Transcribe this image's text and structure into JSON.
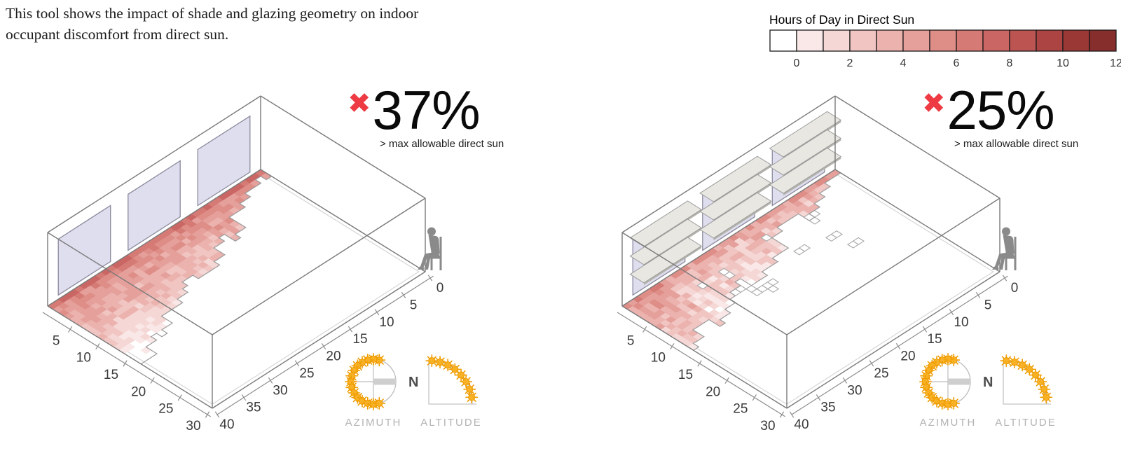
{
  "intro": {
    "line1": "This tool shows the impact of shade and glazing geometry on indoor",
    "line2": "occupant discomfort from direct sun."
  },
  "legend": {
    "title": "Hours of Day in Direct Sun",
    "min": 0,
    "max": 12,
    "tick_labels": [
      "0",
      "2",
      "4",
      "6",
      "8",
      "10",
      "12"
    ],
    "colors": [
      "#ffffff",
      "#f9e8e7",
      "#f5d7d5",
      "#f0c5c2",
      "#ebb2ae",
      "#e5a09b",
      "#de8d87",
      "#d57a75",
      "#ca6663",
      "#bc5452",
      "#ab4442",
      "#993835",
      "#862e2c"
    ]
  },
  "annotation_subtitle": "> max allowable direct sun",
  "sun_path": {
    "azimuth_label": "AZIMUTH",
    "altitude_label": "ALTITUDE",
    "north_label": "N",
    "sun_fill": "#f8b024",
    "sun_ray": "#ef9c00"
  },
  "chart_data": [
    {
      "type": "heatmap",
      "panel": "unshaded-windows",
      "marker": "✖",
      "percent_over_limit": 37,
      "percent_label": "37%",
      "windows": 3,
      "shades_per_window": 0,
      "hours_range": [
        0,
        12
      ],
      "floor_axis_left_ticks": [
        5,
        10,
        15,
        20,
        25,
        30
      ],
      "floor_axis_right_ticks": [
        0,
        5,
        10,
        15,
        20,
        25,
        30,
        35,
        40
      ],
      "heat_model": {
        "wall_hours": 6.3,
        "decay_per_unit_depth": 0.4,
        "spread_at_origin": 16.5,
        "spread_slope": -0.38,
        "noise": 1.0,
        "first_row_boost": 1.2,
        "left_end_boost": 0,
        "holes": 0,
        "seed": 20
      }
    },
    {
      "type": "heatmap",
      "panel": "shaded-windows",
      "marker": "✖",
      "percent_over_limit": 25,
      "percent_label": "25%",
      "windows": 3,
      "shades_per_window": 3,
      "hours_range": [
        0,
        12
      ],
      "floor_axis_left_ticks": [
        5,
        10,
        15,
        20,
        25,
        30
      ],
      "floor_axis_right_ticks": [
        0,
        5,
        10,
        15,
        20,
        25,
        30,
        35,
        40
      ],
      "heat_model": {
        "wall_hours": 4.0,
        "decay_per_unit_depth": 0.3,
        "spread_at_origin": 12.8,
        "spread_slope": -0.31,
        "noise": 1.4,
        "first_row_boost": 1.0,
        "left_end_boost": 1.7,
        "holes": 14,
        "seed": 77
      }
    }
  ]
}
